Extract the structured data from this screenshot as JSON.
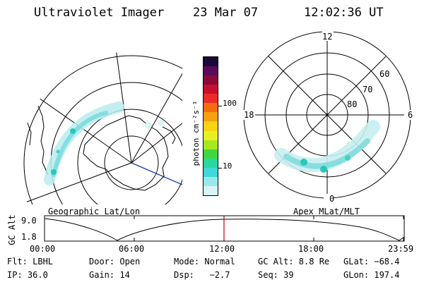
{
  "header": {
    "instrument": "Ultraviolet Imager",
    "date": "23 Mar 07",
    "time": "12:02:36 UT"
  },
  "colorbar": {
    "unit_label": "photon cm⁻²s⁻¹",
    "ticks": [
      "100",
      "10"
    ],
    "colors": [
      "#1a0a3a",
      "#5a0a5a",
      "#8a0a3a",
      "#c8102e",
      "#ef2a2a",
      "#f76b10",
      "#f7a010",
      "#f7d310",
      "#e8f020",
      "#a8e820",
      "#3ed83e",
      "#28d8a0",
      "#40d8d8",
      "#9ae8ea",
      "#d8f4f6"
    ]
  },
  "geo_panel": {
    "label": "Geographic Lat/Lon"
  },
  "mag_panel": {
    "label": "Apex MLat/MLT",
    "mlt_labels": {
      "top": "12",
      "left": "18",
      "right": "6",
      "bottom": "0"
    },
    "lat_labels": [
      "60",
      "70",
      "80"
    ]
  },
  "orbit_plot": {
    "ylabel": "GC Alt",
    "yticks": [
      "9.0",
      "1.8"
    ],
    "xticks": [
      "00:00",
      "06:00",
      "12:00",
      "18:00",
      "23:59"
    ],
    "current_time_marker_color": "#cc0000"
  },
  "status": {
    "row1": {
      "flt": "Flt: LBHL",
      "door": "Door: Open",
      "mode": "Mode: Normal",
      "gc_alt": "GC Alt: 8.8 Re",
      "glat": "GLat: −68.4"
    },
    "row2": {
      "ip": "IP: 36.0",
      "gain": "Gain: 14",
      "dsp": "Dsp:   −2.7",
      "seq": "Seq: 39",
      "glon": "GLon: 197.4"
    }
  }
}
